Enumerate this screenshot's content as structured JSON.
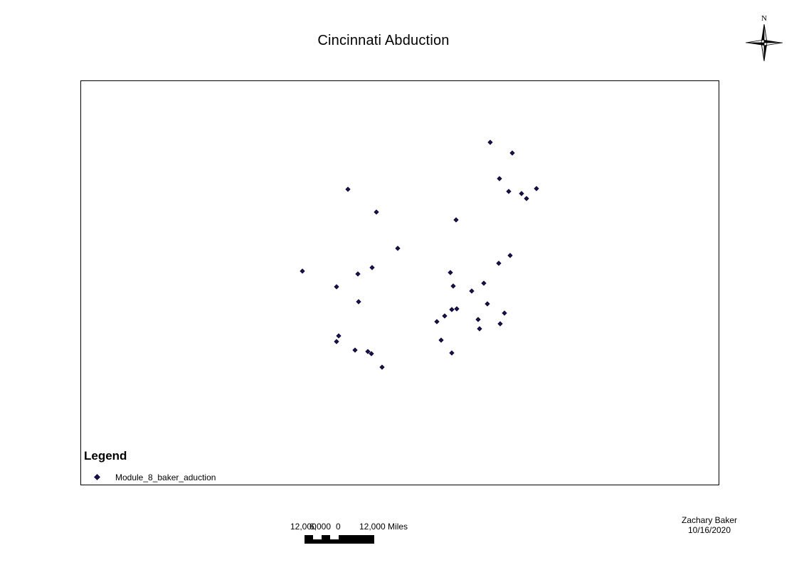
{
  "layout_title": "Cincinnati Abduction",
  "north_arrow": {
    "label": "N",
    "icon": "north-arrow-compass-icon"
  },
  "legend": {
    "title": "Legend",
    "items": [
      {
        "label": "Module_8_baker_aduction",
        "symbol": "point-marker-icon",
        "color": "#1a0f5c"
      }
    ]
  },
  "scale_bar": {
    "labels": [
      "12,000",
      "6,000",
      "0",
      "12,000 Miles"
    ]
  },
  "author": {
    "name": "Zachary Baker",
    "date": "10/16/2020"
  },
  "points_layer": {
    "name": "Module_8_baker_aduction",
    "symbol": "point-marker-icon",
    "color": "#1a0f5c",
    "count": 44
  },
  "colors": {
    "frame": "#000000",
    "background": "#ffffff",
    "point_fill": "#1a0f5c"
  }
}
